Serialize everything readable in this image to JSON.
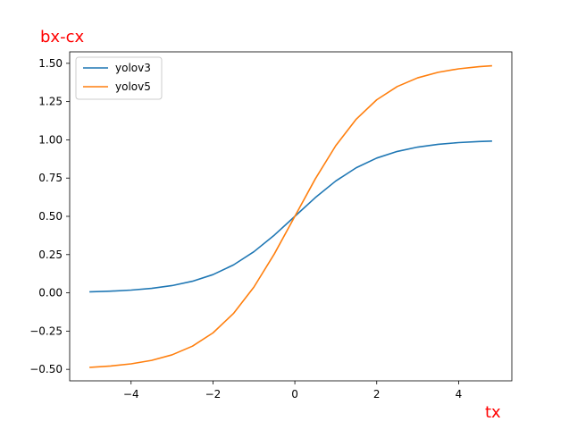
{
  "chart_data": {
    "type": "line",
    "xlabel": "tx",
    "ylabel": "bx-cx",
    "label_color": "#ff0000",
    "xlim": [
      -5.5,
      5.3
    ],
    "ylim": [
      -0.575,
      1.575
    ],
    "xticks": [
      -4,
      -2,
      0,
      2,
      4
    ],
    "xtick_labels": [
      "−4",
      "−2",
      "0",
      "2",
      "4"
    ],
    "yticks": [
      -0.5,
      -0.25,
      0.0,
      0.25,
      0.5,
      0.75,
      1.0,
      1.25,
      1.5
    ],
    "ytick_labels": [
      "−0.50",
      "−0.25",
      "0.00",
      "0.25",
      "0.50",
      "0.75",
      "1.00",
      "1.25",
      "1.50"
    ],
    "grid": false,
    "legend_position": "upper-left",
    "x": [
      -5.0,
      -4.5,
      -4.0,
      -3.5,
      -3.0,
      -2.5,
      -2.0,
      -1.5,
      -1.0,
      -0.5,
      0.0,
      0.5,
      1.0,
      1.5,
      2.0,
      2.5,
      3.0,
      3.5,
      4.0,
      4.5,
      4.8
    ],
    "series": [
      {
        "name": "yolov3",
        "color": "#1f77b4",
        "values": [
          0.0067,
          0.011,
          0.018,
          0.0293,
          0.0474,
          0.0759,
          0.1192,
          0.1824,
          0.2689,
          0.3775,
          0.5,
          0.6225,
          0.7311,
          0.8176,
          0.8808,
          0.9241,
          0.9526,
          0.9707,
          0.982,
          0.989,
          0.9918
        ]
      },
      {
        "name": "yolov5",
        "color": "#ff7f0e",
        "values": [
          -0.4866,
          -0.478,
          -0.464,
          -0.4414,
          -0.4052,
          -0.3482,
          -0.2616,
          -0.1352,
          0.0378,
          0.255,
          0.5,
          0.745,
          0.9622,
          1.1352,
          1.2616,
          1.3482,
          1.4052,
          1.4414,
          1.464,
          1.478,
          1.4836
        ]
      }
    ]
  }
}
